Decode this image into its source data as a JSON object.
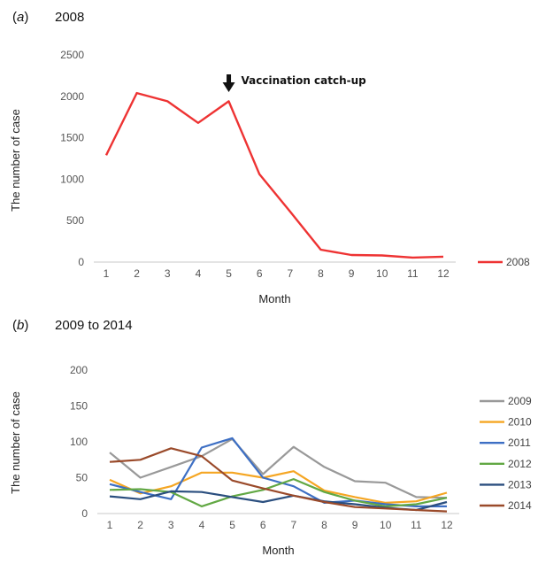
{
  "chart_data": [
    {
      "type": "line",
      "panel_label": "(a)",
      "title": "2008",
      "xlabel": "Month",
      "ylabel": "The number of case",
      "ylim": [
        0,
        2500
      ],
      "yticks": [
        "0",
        "500",
        "1000",
        "1500",
        "2000",
        "2500"
      ],
      "categories": [
        "1",
        "2",
        "3",
        "4",
        "5",
        "6",
        "7",
        "8",
        "9",
        "10",
        "11",
        "12"
      ],
      "annotation": {
        "text": "Vaccination catch-up",
        "x": 5
      },
      "legend_position": "right",
      "grid": false,
      "series": [
        {
          "name": "2008",
          "color": "#ee3333",
          "values": [
            1290,
            2040,
            1940,
            1680,
            1940,
            1060,
            610,
            150,
            85,
            80,
            55,
            65
          ]
        }
      ]
    },
    {
      "type": "line",
      "panel_label": "(b)",
      "title": "2009 to 2014",
      "xlabel": "Month",
      "ylabel": "The number of case",
      "ylim": [
        0,
        200
      ],
      "yticks": [
        "0",
        "50",
        "100",
        "150",
        "200"
      ],
      "categories": [
        "1",
        "2",
        "3",
        "4",
        "5",
        "6",
        "7",
        "8",
        "9",
        "10",
        "11",
        "12"
      ],
      "legend_position": "right",
      "grid": false,
      "series": [
        {
          "name": "2009",
          "color": "#999999",
          "values": [
            85,
            50,
            65,
            80,
            104,
            55,
            93,
            65,
            45,
            43,
            23,
            22
          ]
        },
        {
          "name": "2010",
          "color": "#f5a623",
          "values": [
            47,
            28,
            38,
            57,
            57,
            50,
            59,
            32,
            23,
            15,
            17,
            29
          ]
        },
        {
          "name": "2011",
          "color": "#3d6fc4",
          "values": [
            41,
            30,
            20,
            92,
            105,
            50,
            38,
            15,
            18,
            13,
            10,
            10
          ]
        },
        {
          "name": "2012",
          "color": "#62a844",
          "values": [
            33,
            34,
            30,
            10,
            24,
            33,
            48,
            30,
            18,
            10,
            13,
            22
          ]
        },
        {
          "name": "2013",
          "color": "#2b4f7f",
          "values": [
            24,
            20,
            31,
            30,
            23,
            16,
            25,
            17,
            13,
            8,
            5,
            16
          ]
        },
        {
          "name": "2014",
          "color": "#9a4a2a",
          "values": [
            72,
            75,
            91,
            80,
            46,
            35,
            25,
            16,
            9,
            7,
            5,
            3
          ]
        }
      ]
    }
  ]
}
